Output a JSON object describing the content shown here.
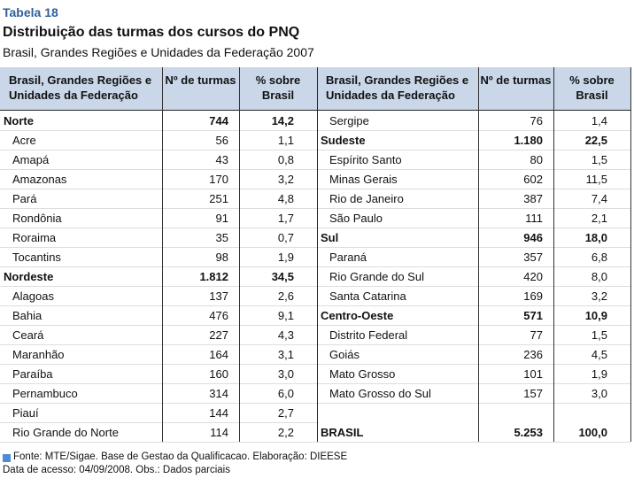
{
  "header": {
    "label": "Tabela 18",
    "title": "Distribuição das turmas dos cursos do PNQ",
    "subtitle": "Brasil, Grandes Regiões e Unidades da Federação 2007"
  },
  "table": {
    "columns": [
      "Brasil, Grandes Regiões e Unidades da Federação",
      "Nº de turmas",
      "% sobre Brasil"
    ],
    "left": [
      {
        "cells": [
          "Norte",
          "744",
          "14,2"
        ],
        "bold": true
      },
      {
        "cells": [
          "Acre",
          "56",
          "1,1"
        ]
      },
      {
        "cells": [
          "Amapá",
          "43",
          "0,8"
        ]
      },
      {
        "cells": [
          "Amazonas",
          "170",
          "3,2"
        ]
      },
      {
        "cells": [
          "Pará",
          "251",
          "4,8"
        ]
      },
      {
        "cells": [
          "Rondônia",
          "91",
          "1,7"
        ]
      },
      {
        "cells": [
          "Roraima",
          "35",
          "0,7"
        ]
      },
      {
        "cells": [
          "Tocantins",
          "98",
          "1,9"
        ]
      },
      {
        "cells": [
          "Nordeste",
          "1.812",
          "34,5"
        ],
        "bold": true
      },
      {
        "cells": [
          "Alagoas",
          "137",
          "2,6"
        ]
      },
      {
        "cells": [
          "Bahia",
          "476",
          "9,1"
        ]
      },
      {
        "cells": [
          "Ceará",
          "227",
          "4,3"
        ]
      },
      {
        "cells": [
          "Maranhão",
          "164",
          "3,1"
        ]
      },
      {
        "cells": [
          "Paraíba",
          "160",
          "3,0"
        ]
      },
      {
        "cells": [
          "Pernambuco",
          "314",
          "6,0"
        ]
      },
      {
        "cells": [
          "Piauí",
          "144",
          "2,7"
        ]
      },
      {
        "cells": [
          "Rio Grande do Norte",
          "114",
          "2,2"
        ]
      }
    ],
    "right": [
      {
        "cells": [
          "Sergipe",
          "76",
          "1,4"
        ]
      },
      {
        "cells": [
          "Sudeste",
          "1.180",
          "22,5"
        ],
        "bold": true
      },
      {
        "cells": [
          "Espírito Santo",
          "80",
          "1,5"
        ]
      },
      {
        "cells": [
          "Minas Gerais",
          "602",
          "11,5"
        ]
      },
      {
        "cells": [
          "Rio de Janeiro",
          "387",
          "7,4"
        ]
      },
      {
        "cells": [
          "São Paulo",
          "111",
          "2,1"
        ]
      },
      {
        "cells": [
          "Sul",
          "946",
          "18,0"
        ],
        "bold": true
      },
      {
        "cells": [
          "Paraná",
          "357",
          "6,8"
        ]
      },
      {
        "cells": [
          "Rio Grande do Sul",
          "420",
          "8,0"
        ]
      },
      {
        "cells": [
          "Santa Catarina",
          "169",
          "3,2"
        ]
      },
      {
        "cells": [
          "Centro-Oeste",
          "571",
          "10,9"
        ],
        "bold": true
      },
      {
        "cells": [
          "Distrito Federal",
          "77",
          "1,5"
        ]
      },
      {
        "cells": [
          "Goiás",
          "236",
          "4,5"
        ]
      },
      {
        "cells": [
          "Mato Grosso",
          "101",
          "1,9"
        ]
      },
      {
        "cells": [
          "Mato Grosso do Sul",
          "157",
          "3,0"
        ]
      }
    ],
    "total": [
      "BRASIL",
      "5.253",
      "100,0"
    ]
  },
  "footer": {
    "source": "Fonte: MTE/Sigae. Base de Gestao da Qualificacao. Elaboração: DIEESE",
    "note": "Data de acesso: 04/09/2008. Obs.: Dados parciais"
  }
}
